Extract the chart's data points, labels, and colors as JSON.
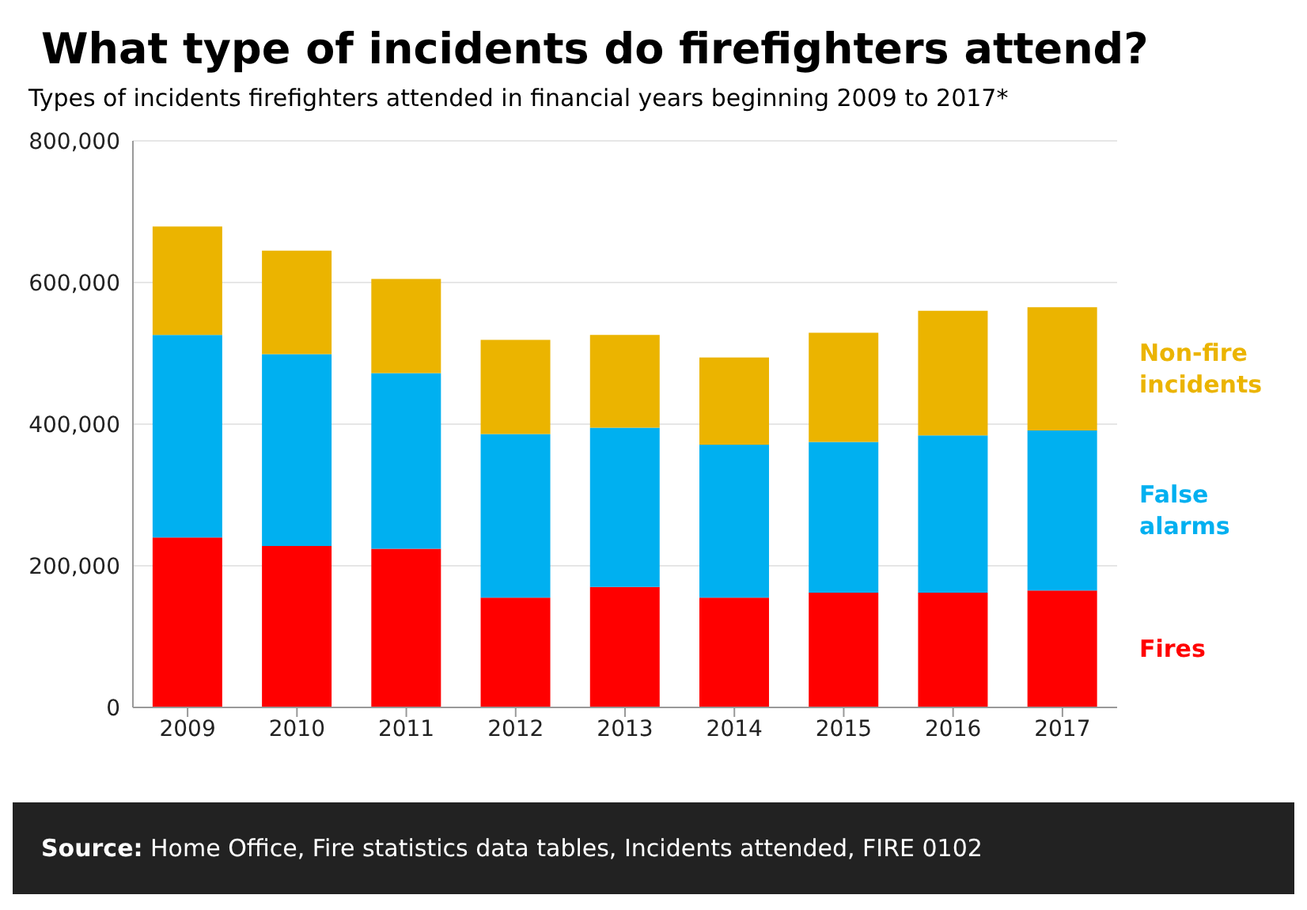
{
  "chart_data": {
    "type": "bar",
    "title": "What type of incidents do firefighters attend?",
    "subtitle": "Types of incidents firefighters attended in financial years beginning 2009 to 2017*",
    "categories": [
      "2009",
      "2010",
      "2011",
      "2012",
      "2013",
      "2014",
      "2015",
      "2016",
      "2017"
    ],
    "stacked": true,
    "series": [
      {
        "name": "Fires",
        "color": "#ff0000",
        "values": [
          240000,
          228000,
          224000,
          155000,
          170000,
          155000,
          162000,
          162000,
          165000
        ]
      },
      {
        "name": "False alarms",
        "color": "#00b0f0",
        "values": [
          286000,
          271000,
          248000,
          231000,
          225000,
          216000,
          213000,
          222000,
          226000
        ]
      },
      {
        "name": "Non-fire incidents",
        "color": "#ebb400",
        "values": [
          153000,
          146000,
          133000,
          133000,
          131000,
          123000,
          154000,
          176000,
          174000
        ]
      }
    ],
    "ylim": [
      0,
      800000
    ],
    "yticks": [
      0,
      {
        "value": 200000,
        "label": "200,000"
      },
      {
        "value": 400000,
        "label": "400,000"
      },
      {
        "value": 600000,
        "label": "600,000"
      },
      {
        "value": 800000,
        "label": "800,000"
      }
    ],
    "grid": "y",
    "annotations": [
      "Source: Home Office, Fire statistics data tables, Incidents attended, FIRE 0102"
    ]
  }
}
